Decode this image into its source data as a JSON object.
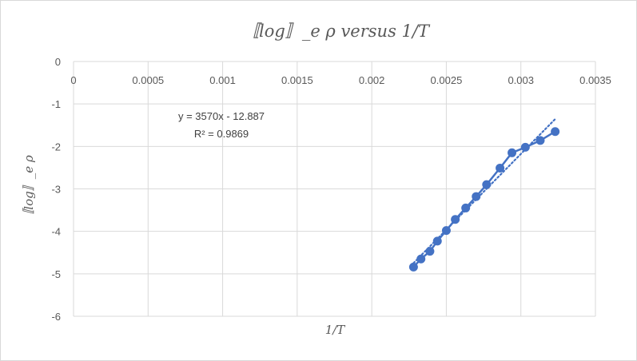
{
  "chart_data": {
    "type": "scatter",
    "title": "〚log〛_e ρ versus  1/T",
    "xlabel": "1/T",
    "ylabel": "〚log〛_e ρ",
    "xlim": [
      0,
      0.0035
    ],
    "ylim": [
      -6,
      0
    ],
    "x_ticks": [
      "0",
      "0.0005",
      "0.001",
      "0.0015",
      "0.002",
      "0.0025",
      "0.003",
      "0.0035"
    ],
    "y_ticks": [
      "0",
      "-1",
      "-2",
      "-3",
      "-4",
      "-5",
      "-6"
    ],
    "grid": true,
    "series": [
      {
        "color": "#4472c4",
        "marker": "circle",
        "line": "solid",
        "x": [
          0.00228,
          0.00233,
          0.00239,
          0.00244,
          0.0025,
          0.00256,
          0.00263,
          0.0027,
          0.00277,
          0.00286,
          0.00294,
          0.00303,
          0.00313,
          0.00323
        ],
        "y": [
          -4.84,
          -4.65,
          -4.47,
          -4.23,
          -3.98,
          -3.72,
          -3.45,
          -3.18,
          -2.9,
          -2.51,
          -2.15,
          -2.02,
          -1.86,
          -1.65
        ]
      }
    ],
    "trendline": {
      "type": "linear",
      "style": "dotted",
      "color": "#4472c4",
      "slope": 3570,
      "intercept": -12.887,
      "x_range": [
        0.00228,
        0.00323
      ],
      "equation_label": "y = 3570x - 12.887",
      "r2_label": "R² = 0.9869"
    }
  }
}
